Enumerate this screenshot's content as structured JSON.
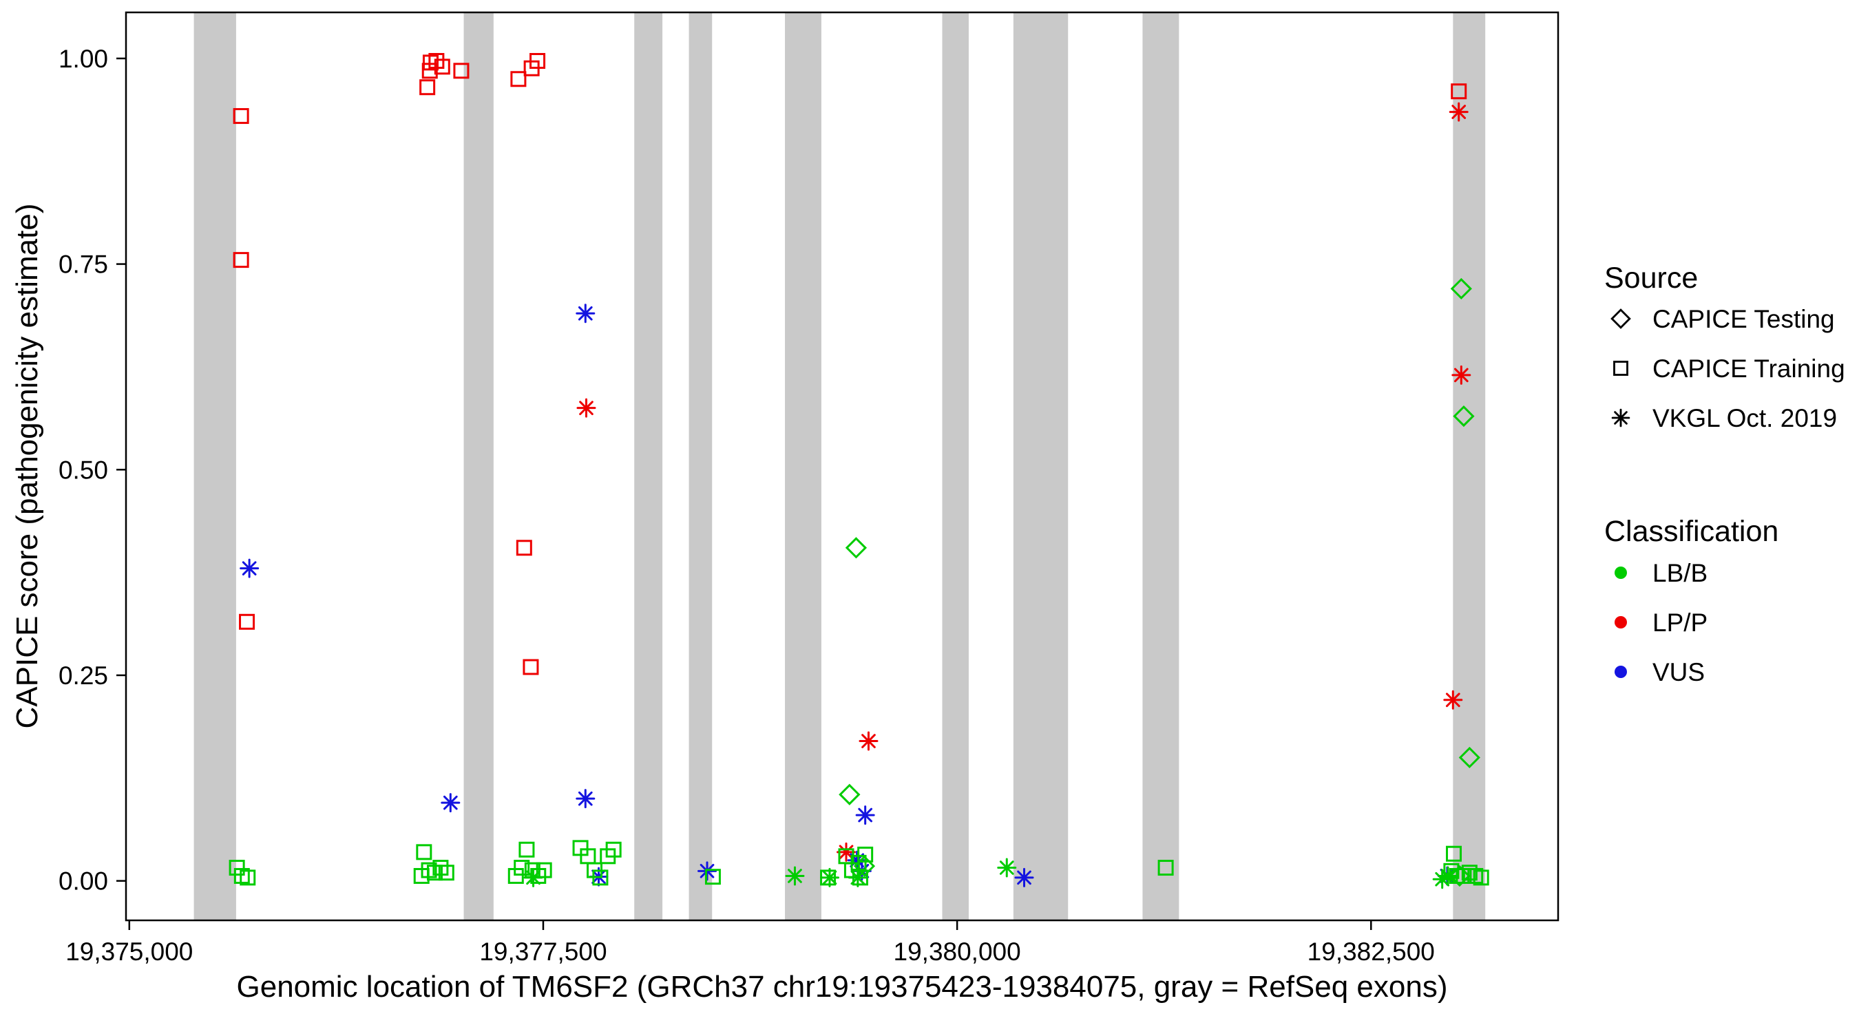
{
  "legend": {
    "source": {
      "title": "Source",
      "items": [
        {
          "label": "CAPICE Testing",
          "shape": "diamond"
        },
        {
          "label": "CAPICE Training",
          "shape": "square"
        },
        {
          "label": "VKGL Oct. 2019",
          "shape": "asterisk"
        }
      ]
    },
    "classification": {
      "title": "Classification",
      "items": [
        {
          "label": "LB/B",
          "color": "#00cc00"
        },
        {
          "label": "LP/P",
          "color": "#ee0000"
        },
        {
          "label": "VUS",
          "color": "#1414e0"
        }
      ]
    }
  },
  "chart_data": {
    "type": "scatter",
    "title": "",
    "xlabel": "Genomic location of TM6SF2 (GRCh37 chr19:19375423-19384075, gray = RefSeq exons)",
    "ylabel": "CAPICE score (pathogenicity estimate)",
    "xlim": [
      19374980,
      19383630
    ],
    "ylim": [
      -0.048,
      1.056
    ],
    "grid": false,
    "legend_position": "right",
    "x_ticks": [
      {
        "value": 19375000,
        "label": "19,375,000"
      },
      {
        "value": 19377500,
        "label": "19,377,500"
      },
      {
        "value": 19380000,
        "label": "19,380,000"
      },
      {
        "value": 19382500,
        "label": "19,382,500"
      }
    ],
    "y_ticks": [
      {
        "value": 0.0,
        "label": "0.00"
      },
      {
        "value": 0.25,
        "label": "0.25"
      },
      {
        "value": 0.5,
        "label": "0.50"
      },
      {
        "value": 0.75,
        "label": "0.75"
      },
      {
        "value": 1.0,
        "label": "1.00"
      }
    ],
    "exon_color": "#c9c9c9",
    "exons": [
      [
        19375390,
        19375645
      ],
      [
        19377020,
        19377200
      ],
      [
        19378050,
        19378220
      ],
      [
        19378380,
        19378520
      ],
      [
        19378960,
        19379180
      ],
      [
        19379910,
        19380070
      ],
      [
        19380340,
        19380670
      ],
      [
        19381120,
        19381340
      ],
      [
        19382995,
        19383190
      ]
    ],
    "shape_by_source": {
      "CAPICE Testing": "diamond",
      "CAPICE Training": "square",
      "VKGL Oct. 2019": "asterisk"
    },
    "color_by_classification": {
      "LB/B": "#00cc00",
      "LP/P": "#ee0000",
      "VUS": "#1414e0"
    },
    "points": [
      {
        "x": 19375675,
        "y": 0.93,
        "source": "CAPICE Training",
        "classification": "LP/P"
      },
      {
        "x": 19375675,
        "y": 0.755,
        "source": "CAPICE Training",
        "classification": "LP/P"
      },
      {
        "x": 19375710,
        "y": 0.315,
        "source": "CAPICE Training",
        "classification": "LP/P"
      },
      {
        "x": 19376800,
        "y": 0.965,
        "source": "CAPICE Training",
        "classification": "LP/P"
      },
      {
        "x": 19376815,
        "y": 0.985,
        "source": "CAPICE Training",
        "classification": "LP/P"
      },
      {
        "x": 19376820,
        "y": 0.995,
        "source": "CAPICE Training",
        "classification": "LP/P"
      },
      {
        "x": 19376855,
        "y": 0.997,
        "source": "CAPICE Training",
        "classification": "LP/P"
      },
      {
        "x": 19376890,
        "y": 0.99,
        "source": "CAPICE Training",
        "classification": "LP/P"
      },
      {
        "x": 19377005,
        "y": 0.985,
        "source": "CAPICE Training",
        "classification": "LP/P"
      },
      {
        "x": 19377350,
        "y": 0.975,
        "source": "CAPICE Training",
        "classification": "LP/P"
      },
      {
        "x": 19377430,
        "y": 0.988,
        "source": "CAPICE Training",
        "classification": "LP/P"
      },
      {
        "x": 19377465,
        "y": 0.997,
        "source": "CAPICE Training",
        "classification": "LP/P"
      },
      {
        "x": 19377385,
        "y": 0.405,
        "source": "CAPICE Training",
        "classification": "LP/P"
      },
      {
        "x": 19377425,
        "y": 0.26,
        "source": "CAPICE Training",
        "classification": "LP/P"
      },
      {
        "x": 19383030,
        "y": 0.96,
        "source": "CAPICE Training",
        "classification": "LP/P"
      },
      {
        "x": 19377760,
        "y": 0.575,
        "source": "VKGL Oct. 2019",
        "classification": "LP/P"
      },
      {
        "x": 19379465,
        "y": 0.17,
        "source": "VKGL Oct. 2019",
        "classification": "LP/P"
      },
      {
        "x": 19379330,
        "y": 0.035,
        "source": "VKGL Oct. 2019",
        "classification": "LP/P"
      },
      {
        "x": 19383030,
        "y": 0.935,
        "source": "VKGL Oct. 2019",
        "classification": "LP/P"
      },
      {
        "x": 19383045,
        "y": 0.615,
        "source": "VKGL Oct. 2019",
        "classification": "LP/P"
      },
      {
        "x": 19382995,
        "y": 0.22,
        "source": "VKGL Oct. 2019",
        "classification": "LP/P"
      },
      {
        "x": 19375725,
        "y": 0.38,
        "source": "VKGL Oct. 2019",
        "classification": "VUS"
      },
      {
        "x": 19377755,
        "y": 0.69,
        "source": "VKGL Oct. 2019",
        "classification": "VUS"
      },
      {
        "x": 19376940,
        "y": 0.095,
        "source": "VKGL Oct. 2019",
        "classification": "VUS"
      },
      {
        "x": 19377755,
        "y": 0.1,
        "source": "VKGL Oct. 2019",
        "classification": "VUS"
      },
      {
        "x": 19377835,
        "y": 0.005,
        "source": "VKGL Oct. 2019",
        "classification": "VUS"
      },
      {
        "x": 19378490,
        "y": 0.012,
        "source": "VKGL Oct. 2019",
        "classification": "VUS"
      },
      {
        "x": 19379445,
        "y": 0.08,
        "source": "VKGL Oct. 2019",
        "classification": "VUS"
      },
      {
        "x": 19379395,
        "y": 0.025,
        "source": "VKGL Oct. 2019",
        "classification": "VUS"
      },
      {
        "x": 19379425,
        "y": 0.012,
        "source": "VKGL Oct. 2019",
        "classification": "VUS"
      },
      {
        "x": 19380405,
        "y": 0.004,
        "source": "VKGL Oct. 2019",
        "classification": "VUS"
      },
      {
        "x": 19382960,
        "y": 0.006,
        "source": "VKGL Oct. 2019",
        "classification": "VUS"
      },
      {
        "x": 19379390,
        "y": 0.405,
        "source": "CAPICE Testing",
        "classification": "LB/B"
      },
      {
        "x": 19379350,
        "y": 0.105,
        "source": "CAPICE Testing",
        "classification": "LB/B"
      },
      {
        "x": 19379440,
        "y": 0.018,
        "source": "CAPICE Testing",
        "classification": "LB/B"
      },
      {
        "x": 19383045,
        "y": 0.72,
        "source": "CAPICE Testing",
        "classification": "LB/B"
      },
      {
        "x": 19383060,
        "y": 0.565,
        "source": "CAPICE Testing",
        "classification": "LB/B"
      },
      {
        "x": 19383095,
        "y": 0.15,
        "source": "CAPICE Testing",
        "classification": "LB/B"
      },
      {
        "x": 19383035,
        "y": 0.006,
        "source": "CAPICE Testing",
        "classification": "LB/B"
      },
      {
        "x": 19375650,
        "y": 0.016,
        "source": "CAPICE Training",
        "classification": "LB/B"
      },
      {
        "x": 19375680,
        "y": 0.006,
        "source": "CAPICE Training",
        "classification": "LB/B"
      },
      {
        "x": 19375715,
        "y": 0.004,
        "source": "CAPICE Training",
        "classification": "LB/B"
      },
      {
        "x": 19376780,
        "y": 0.035,
        "source": "CAPICE Training",
        "classification": "LB/B"
      },
      {
        "x": 19376765,
        "y": 0.006,
        "source": "CAPICE Training",
        "classification": "LB/B"
      },
      {
        "x": 19376810,
        "y": 0.013,
        "source": "CAPICE Training",
        "classification": "LB/B"
      },
      {
        "x": 19376845,
        "y": 0.01,
        "source": "CAPICE Training",
        "classification": "LB/B"
      },
      {
        "x": 19376880,
        "y": 0.016,
        "source": "CAPICE Training",
        "classification": "LB/B"
      },
      {
        "x": 19376915,
        "y": 0.01,
        "source": "CAPICE Training",
        "classification": "LB/B"
      },
      {
        "x": 19377335,
        "y": 0.006,
        "source": "CAPICE Training",
        "classification": "LB/B"
      },
      {
        "x": 19377370,
        "y": 0.016,
        "source": "CAPICE Training",
        "classification": "LB/B"
      },
      {
        "x": 19377400,
        "y": 0.038,
        "source": "CAPICE Training",
        "classification": "LB/B"
      },
      {
        "x": 19377435,
        "y": 0.013,
        "source": "CAPICE Training",
        "classification": "LB/B"
      },
      {
        "x": 19377470,
        "y": 0.006,
        "source": "CAPICE Training",
        "classification": "LB/B"
      },
      {
        "x": 19377505,
        "y": 0.013,
        "source": "CAPICE Training",
        "classification": "LB/B"
      },
      {
        "x": 19377725,
        "y": 0.04,
        "source": "CAPICE Training",
        "classification": "LB/B"
      },
      {
        "x": 19377770,
        "y": 0.03,
        "source": "CAPICE Training",
        "classification": "LB/B"
      },
      {
        "x": 19377810,
        "y": 0.013,
        "source": "CAPICE Training",
        "classification": "LB/B"
      },
      {
        "x": 19377845,
        "y": 0.004,
        "source": "CAPICE Training",
        "classification": "LB/B"
      },
      {
        "x": 19377890,
        "y": 0.03,
        "source": "CAPICE Training",
        "classification": "LB/B"
      },
      {
        "x": 19377925,
        "y": 0.038,
        "source": "CAPICE Training",
        "classification": "LB/B"
      },
      {
        "x": 19378525,
        "y": 0.005,
        "source": "CAPICE Training",
        "classification": "LB/B"
      },
      {
        "x": 19379220,
        "y": 0.004,
        "source": "CAPICE Training",
        "classification": "LB/B"
      },
      {
        "x": 19379330,
        "y": 0.03,
        "source": "CAPICE Training",
        "classification": "LB/B"
      },
      {
        "x": 19379365,
        "y": 0.013,
        "source": "CAPICE Training",
        "classification": "LB/B"
      },
      {
        "x": 19379405,
        "y": 0.022,
        "source": "CAPICE Training",
        "classification": "LB/B"
      },
      {
        "x": 19379445,
        "y": 0.032,
        "source": "CAPICE Training",
        "classification": "LB/B"
      },
      {
        "x": 19379415,
        "y": 0.004,
        "source": "CAPICE Training",
        "classification": "LB/B"
      },
      {
        "x": 19381260,
        "y": 0.016,
        "source": "CAPICE Training",
        "classification": "LB/B"
      },
      {
        "x": 19382985,
        "y": 0.012,
        "source": "CAPICE Training",
        "classification": "LB/B"
      },
      {
        "x": 19383000,
        "y": 0.033,
        "source": "CAPICE Training",
        "classification": "LB/B"
      },
      {
        "x": 19383020,
        "y": 0.006,
        "source": "CAPICE Training",
        "classification": "LB/B"
      },
      {
        "x": 19383060,
        "y": 0.006,
        "source": "CAPICE Training",
        "classification": "LB/B"
      },
      {
        "x": 19383095,
        "y": 0.01,
        "source": "CAPICE Training",
        "classification": "LB/B"
      },
      {
        "x": 19383130,
        "y": 0.006,
        "source": "CAPICE Training",
        "classification": "LB/B"
      },
      {
        "x": 19383165,
        "y": 0.004,
        "source": "CAPICE Training",
        "classification": "LB/B"
      },
      {
        "x": 19377440,
        "y": 0.004,
        "source": "VKGL Oct. 2019",
        "classification": "LB/B"
      },
      {
        "x": 19379020,
        "y": 0.006,
        "source": "VKGL Oct. 2019",
        "classification": "LB/B"
      },
      {
        "x": 19379230,
        "y": 0.004,
        "source": "VKGL Oct. 2019",
        "classification": "LB/B"
      },
      {
        "x": 19379400,
        "y": 0.004,
        "source": "VKGL Oct. 2019",
        "classification": "LB/B"
      },
      {
        "x": 19380300,
        "y": 0.016,
        "source": "VKGL Oct. 2019",
        "classification": "LB/B"
      },
      {
        "x": 19382930,
        "y": 0.002,
        "source": "VKGL Oct. 2019",
        "classification": "LB/B"
      },
      {
        "x": 19382965,
        "y": 0.006,
        "source": "VKGL Oct. 2019",
        "classification": "LB/B"
      }
    ]
  }
}
